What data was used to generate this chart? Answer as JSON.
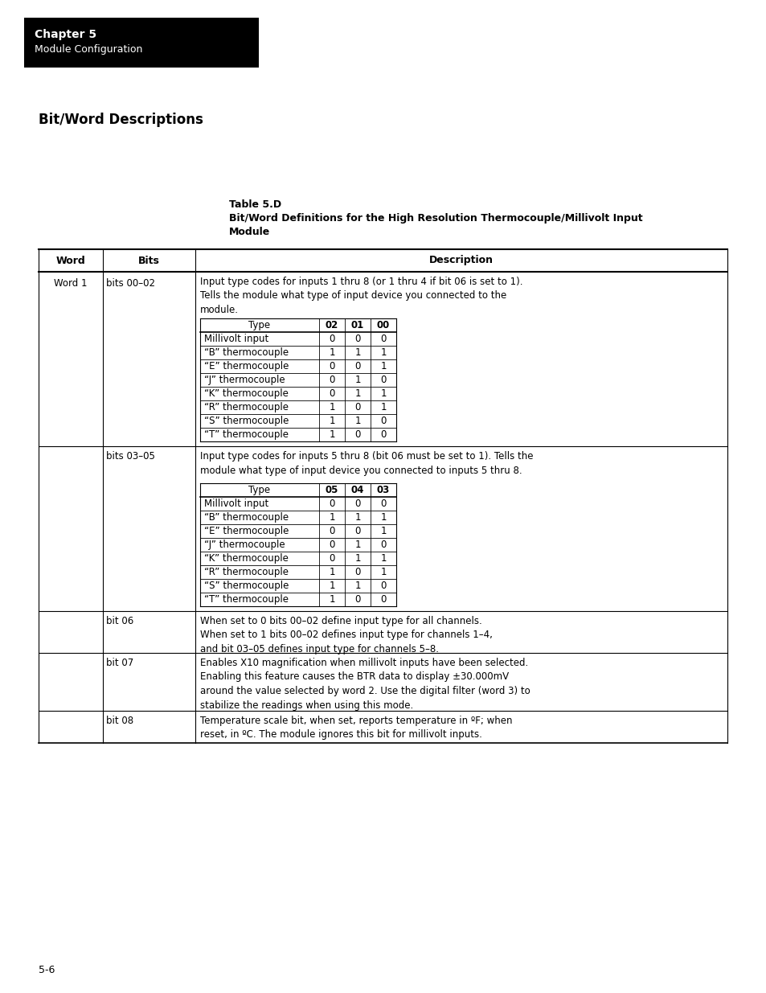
{
  "page_bg": "#ffffff",
  "chapter_box_color": "#000000",
  "chapter_text": "Chapter 5",
  "chapter_subtext": "Module Configuration",
  "section_title": "Bit/Word Descriptions",
  "table_title_line1": "Table 5.D",
  "table_title_line2": "Bit/Word Definitions for the High Resolution Thermocouple/Millivolt Input",
  "table_title_line3": "Module",
  "header_cols": [
    "Word",
    "Bits",
    "Description"
  ],
  "page_number": "5-6",
  "table1_header": [
    "Type",
    "02",
    "01",
    "00"
  ],
  "table1_rows": [
    [
      "Millivolt input",
      "0",
      "0",
      "0"
    ],
    [
      "“B” thermocouple",
      "1",
      "1",
      "1"
    ],
    [
      "“E” thermocouple",
      "0",
      "0",
      "1"
    ],
    [
      "“J” thermocouple",
      "0",
      "1",
      "0"
    ],
    [
      "“K” thermocouple",
      "0",
      "1",
      "1"
    ],
    [
      "“R” thermocouple",
      "1",
      "0",
      "1"
    ],
    [
      "“S” thermocouple",
      "1",
      "1",
      "0"
    ],
    [
      "“T” thermocouple",
      "1",
      "0",
      "0"
    ]
  ],
  "table2_header": [
    "Type",
    "05",
    "04",
    "03"
  ],
  "table2_rows": [
    [
      "Millivolt input",
      "0",
      "0",
      "0"
    ],
    [
      "“B” thermocouple",
      "1",
      "1",
      "1"
    ],
    [
      "“E” thermocouple",
      "0",
      "0",
      "1"
    ],
    [
      "“J” thermocouple",
      "0",
      "1",
      "0"
    ],
    [
      "“K” thermocouple",
      "0",
      "1",
      "1"
    ],
    [
      "“R” thermocouple",
      "1",
      "0",
      "1"
    ],
    [
      "“S” thermocouple",
      "1",
      "1",
      "0"
    ],
    [
      "“T” thermocouple",
      "1",
      "0",
      "0"
    ]
  ],
  "bits_00_02_desc": "Input type codes for inputs 1 thru 8 (or 1 thru 4 if bit 06 is set to 1).\nTells the module what type of input device you connected to the\nmodule.",
  "bits_03_05_desc": "Input type codes for inputs 5 thru 8 (bit 06 must be set to 1). Tells the\nmodule what type of input device you connected to inputs 5 thru 8.",
  "bit_06_desc": "When set to 0 bits 00–02 define input type for all channels.\nWhen set to 1 bits 00–02 defines input type for channels 1–4,\nand bit 03–05 defines input type for channels 5–8.",
  "bit_07_desc": "Enables X10 magnification when millivolt inputs have been selected.\nEnabling this feature causes the BTR data to display ±30.000mV\naround the value selected by word 2. Use the digital filter (word 3) to\nstabilize the readings when using this mode.",
  "bit_08_desc": "Temperature scale bit, when set, reports temperature in ºF; when\nreset, in ºC. The module ignores this bit for millivolt inputs."
}
